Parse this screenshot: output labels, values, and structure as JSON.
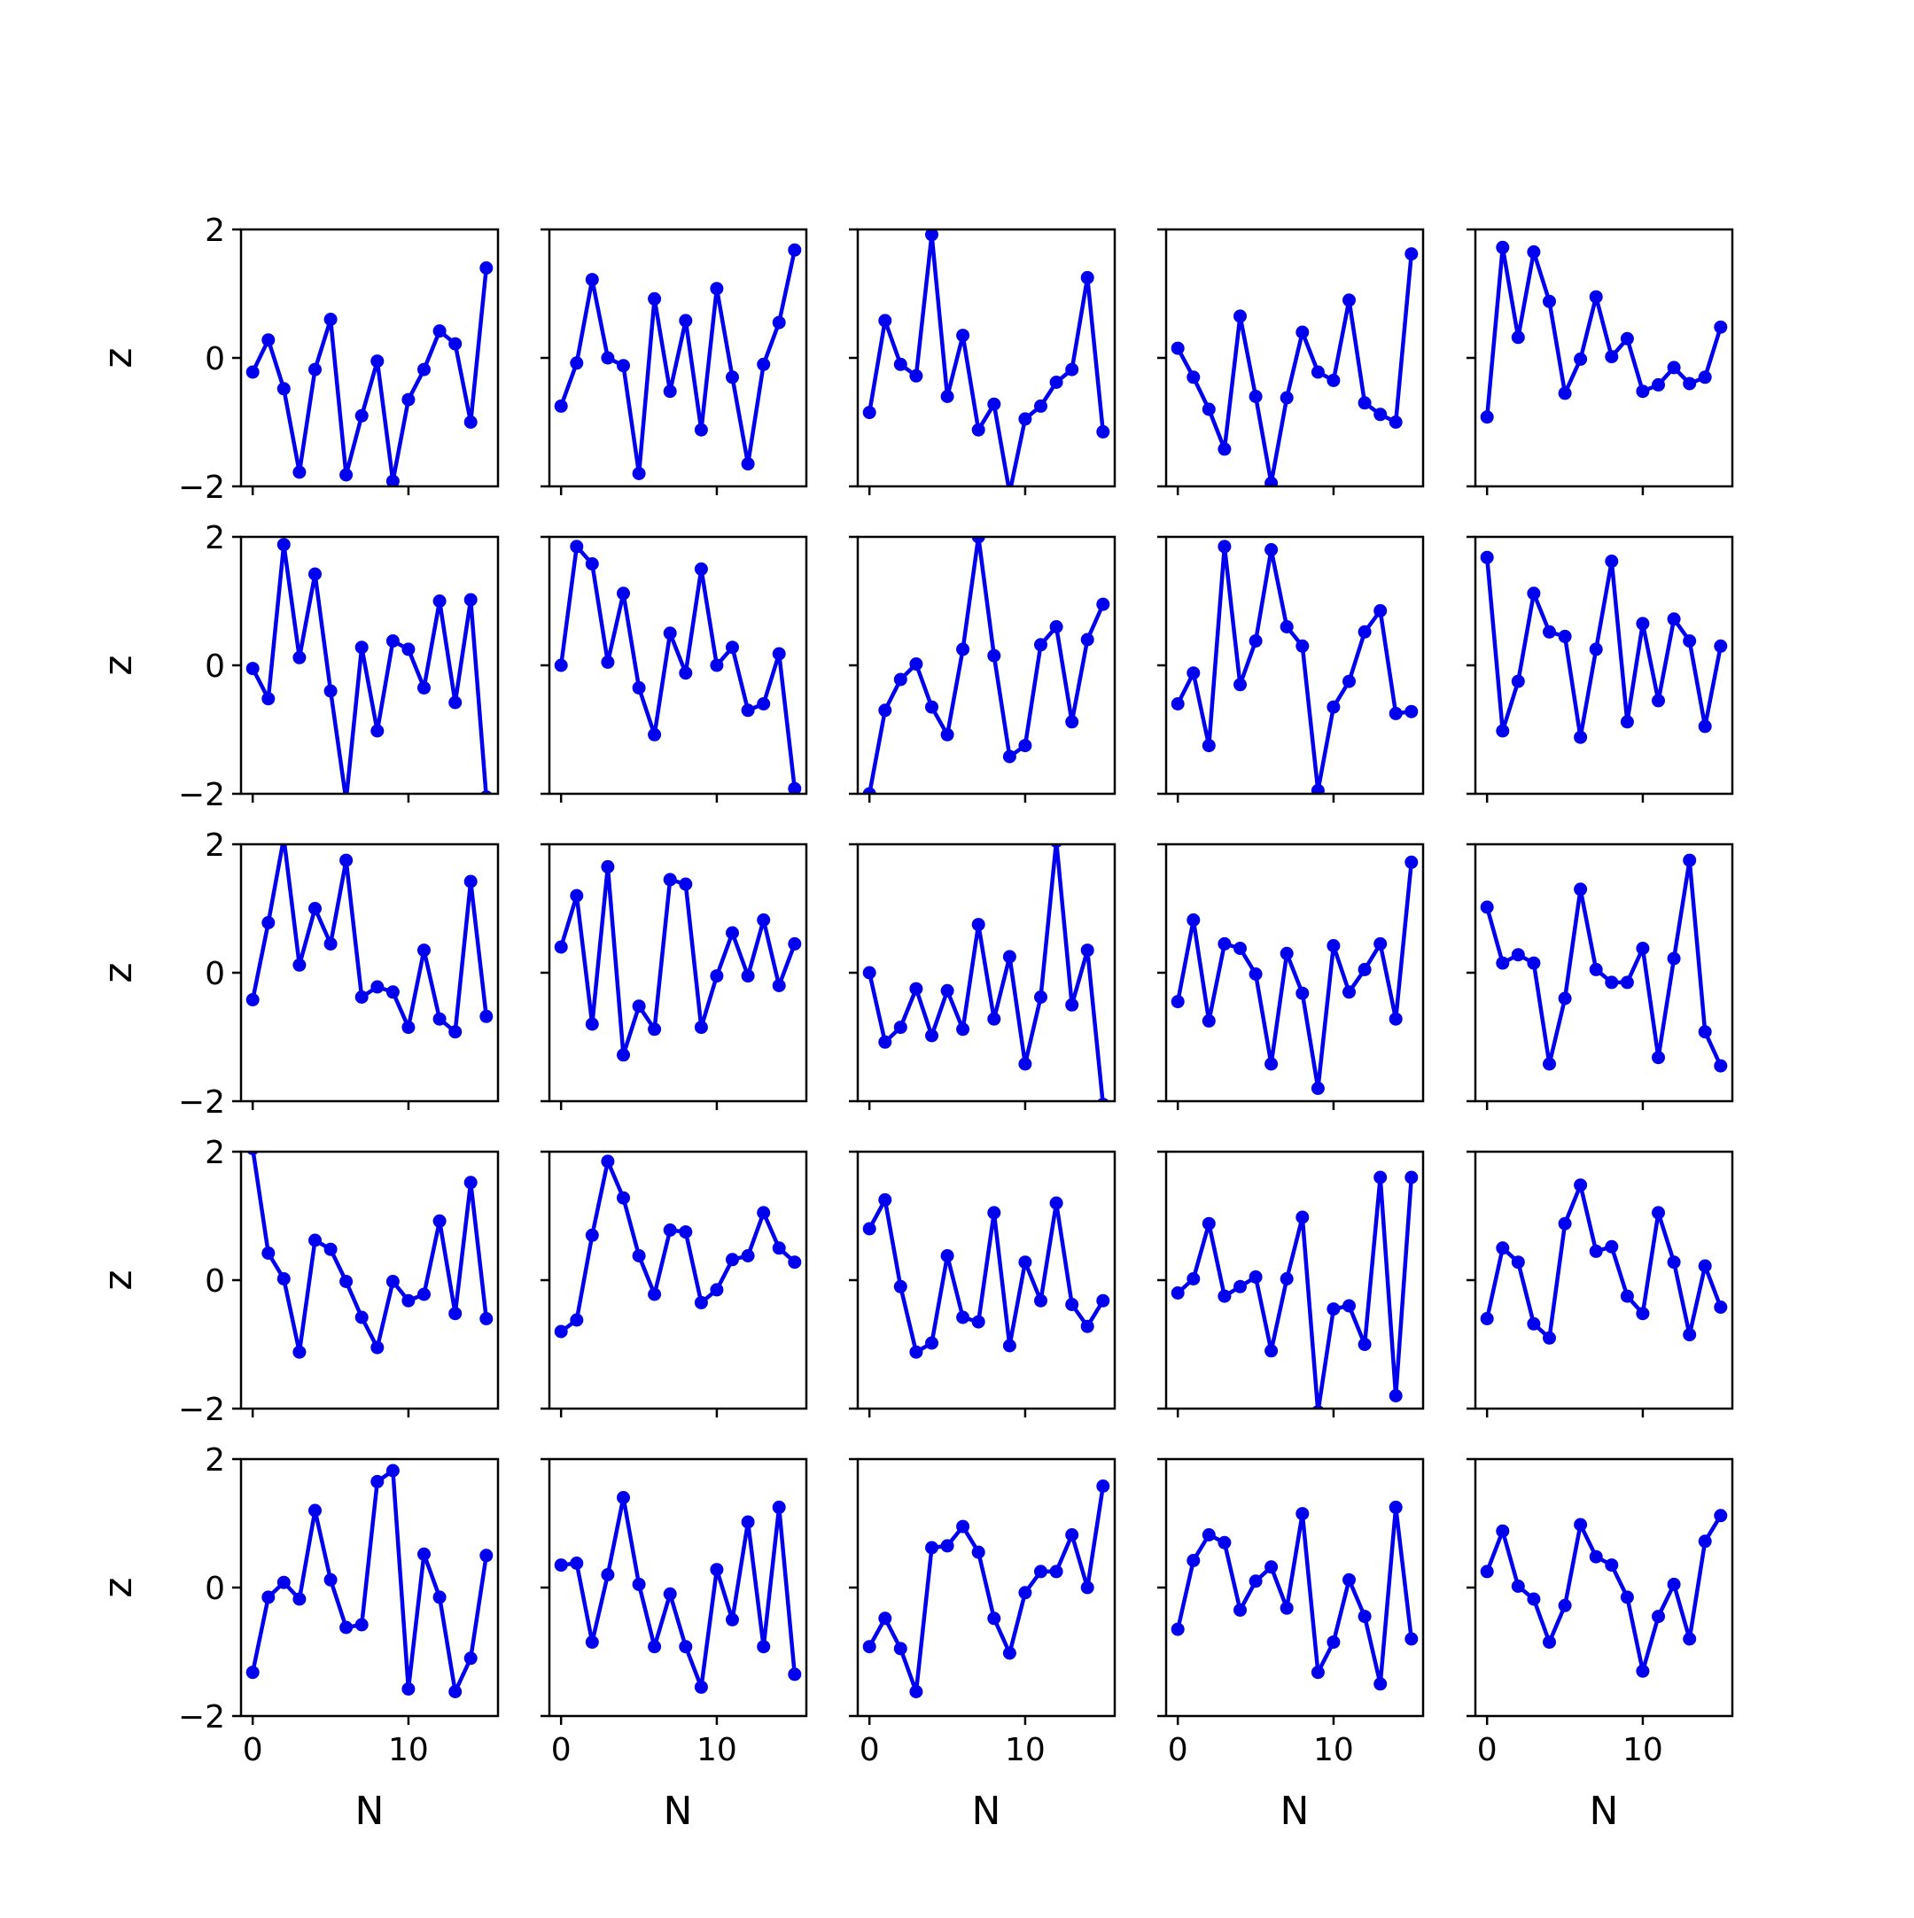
{
  "chart_data": {
    "type": "line",
    "layout": {
      "rows": 5,
      "cols": 5
    },
    "line_color": "#0000ee",
    "xlabel": "N",
    "ylabel": "z",
    "xlim": [
      -0.75,
      15.75
    ],
    "ylim": [
      -2,
      2
    ],
    "xticks": [
      0,
      10
    ],
    "yticks": [
      -2,
      0,
      2
    ],
    "x": [
      0,
      1,
      2,
      3,
      4,
      5,
      6,
      7,
      8,
      9,
      10,
      11,
      12,
      13,
      14,
      15
    ],
    "panels": [
      {
        "values": [
          -0.22,
          0.28,
          -0.48,
          -1.78,
          -0.18,
          0.6,
          -1.82,
          -0.9,
          -0.05,
          -1.92,
          -0.65,
          -0.18,
          0.42,
          0.22,
          -1.0,
          1.4
        ]
      },
      {
        "values": [
          -0.75,
          -0.08,
          1.22,
          0.0,
          -0.12,
          -1.8,
          0.92,
          -0.52,
          0.58,
          -1.12,
          1.08,
          -0.3,
          -1.65,
          -0.1,
          0.55,
          1.68
        ]
      },
      {
        "values": [
          -0.85,
          0.58,
          -0.1,
          -0.28,
          1.92,
          -0.6,
          0.35,
          -1.12,
          -0.72,
          -2.1,
          -0.95,
          -0.75,
          -0.38,
          -0.18,
          1.25,
          -1.15
        ]
      },
      {
        "values": [
          0.15,
          -0.3,
          -0.8,
          -1.42,
          0.65,
          -0.6,
          -1.95,
          -0.62,
          0.4,
          -0.22,
          -0.35,
          0.9,
          -0.7,
          -0.88,
          -1.0,
          1.62
        ]
      },
      {
        "values": [
          -0.92,
          1.72,
          0.32,
          1.65,
          0.88,
          -0.55,
          -0.02,
          0.95,
          0.02,
          0.3,
          -0.52,
          -0.42,
          -0.15,
          -0.4,
          -0.3,
          0.48
        ]
      },
      {
        "values": [
          -0.05,
          -0.52,
          1.88,
          0.12,
          1.42,
          -0.4,
          -2.1,
          0.28,
          -1.02,
          0.38,
          0.25,
          -0.35,
          1.0,
          -0.58,
          1.02,
          -2.05
        ]
      },
      {
        "values": [
          0.0,
          1.85,
          1.58,
          0.05,
          1.12,
          -0.35,
          -1.08,
          0.5,
          -0.12,
          1.5,
          0.0,
          0.28,
          -0.7,
          -0.6,
          0.18,
          -1.92
        ]
      },
      {
        "values": [
          -2.0,
          -0.7,
          -0.22,
          0.02,
          -0.65,
          -1.08,
          0.25,
          2.0,
          0.15,
          -1.42,
          -1.25,
          0.32,
          0.6,
          -0.88,
          0.4,
          0.95
        ]
      },
      {
        "values": [
          -0.6,
          -0.12,
          -1.25,
          1.85,
          -0.3,
          0.38,
          1.8,
          0.6,
          0.3,
          -1.95,
          -0.65,
          -0.25,
          0.52,
          0.85,
          -0.75,
          -0.72
        ]
      },
      {
        "values": [
          1.68,
          -1.02,
          -0.25,
          1.12,
          0.52,
          0.45,
          -1.12,
          0.25,
          1.62,
          -0.88,
          0.65,
          -0.55,
          0.72,
          0.38,
          -0.95,
          0.3
        ]
      },
      {
        "values": [
          -0.42,
          0.78,
          2.1,
          0.12,
          1.0,
          0.45,
          1.75,
          -0.38,
          -0.22,
          -0.3,
          -0.85,
          0.35,
          -0.72,
          -0.92,
          1.42,
          -0.68
        ]
      },
      {
        "values": [
          0.4,
          1.2,
          -0.8,
          1.65,
          -1.28,
          -0.52,
          -0.88,
          1.45,
          1.38,
          -0.85,
          -0.05,
          0.62,
          -0.05,
          0.82,
          -0.2,
          0.45
        ]
      },
      {
        "values": [
          0.0,
          -1.08,
          -0.85,
          -0.25,
          -0.98,
          -0.28,
          -0.88,
          0.75,
          -0.72,
          0.25,
          -1.42,
          -0.38,
          2.05,
          -0.5,
          0.35,
          -2.05
        ]
      },
      {
        "values": [
          -0.45,
          0.82,
          -0.75,
          0.45,
          0.38,
          -0.02,
          -1.42,
          0.3,
          -0.32,
          -1.8,
          0.42,
          -0.3,
          0.05,
          0.45,
          -0.72,
          1.72
        ]
      },
      {
        "values": [
          1.02,
          0.15,
          0.28,
          0.15,
          -1.42,
          -0.4,
          1.3,
          0.05,
          -0.15,
          -0.15,
          0.38,
          -1.32,
          0.22,
          1.75,
          -0.92,
          -1.45
        ]
      },
      {
        "values": [
          2.05,
          0.42,
          0.02,
          -1.12,
          0.62,
          0.48,
          -0.02,
          -0.58,
          -1.05,
          -0.02,
          -0.32,
          -0.22,
          0.92,
          -0.52,
          1.52,
          -0.6
        ]
      },
      {
        "values": [
          -0.8,
          -0.62,
          0.7,
          1.85,
          1.28,
          0.38,
          -0.22,
          0.78,
          0.75,
          -0.35,
          -0.15,
          0.32,
          0.38,
          1.05,
          0.5,
          0.28
        ]
      },
      {
        "values": [
          0.8,
          1.25,
          -0.1,
          -1.12,
          -0.98,
          0.38,
          -0.58,
          -0.65,
          1.05,
          -1.02,
          0.28,
          -0.32,
          1.2,
          -0.38,
          -0.72,
          -0.32
        ]
      },
      {
        "values": [
          -0.2,
          0.02,
          0.88,
          -0.25,
          -0.1,
          0.05,
          -1.1,
          0.02,
          0.98,
          -2.05,
          -0.45,
          -0.4,
          -1.0,
          1.6,
          -1.8,
          1.6
        ]
      },
      {
        "values": [
          -0.6,
          0.5,
          0.28,
          -0.68,
          -0.9,
          0.88,
          1.48,
          0.45,
          0.52,
          -0.25,
          -0.52,
          1.05,
          0.28,
          -0.85,
          0.22,
          -0.42
        ]
      },
      {
        "values": [
          -1.32,
          -0.15,
          0.08,
          -0.18,
          1.2,
          0.12,
          -0.62,
          -0.58,
          1.65,
          1.82,
          -1.58,
          0.52,
          -0.15,
          -1.62,
          -1.1,
          0.5
        ]
      },
      {
        "values": [
          0.35,
          0.38,
          -0.85,
          0.2,
          1.4,
          0.05,
          -0.92,
          -0.1,
          -0.92,
          -1.55,
          0.28,
          -0.5,
          1.02,
          -0.92,
          1.25,
          -1.35
        ]
      },
      {
        "values": [
          -0.92,
          -0.48,
          -0.95,
          -1.62,
          0.62,
          0.65,
          0.95,
          0.55,
          -0.48,
          -1.02,
          -0.08,
          0.25,
          0.25,
          0.82,
          0.0,
          1.58
        ]
      },
      {
        "values": [
          -0.65,
          0.42,
          0.82,
          0.7,
          -0.35,
          0.1,
          0.32,
          -0.32,
          1.15,
          -1.32,
          -0.85,
          0.12,
          -0.45,
          -1.5,
          1.25,
          -0.8
        ]
      },
      {
        "values": [
          0.25,
          0.88,
          0.02,
          -0.18,
          -0.85,
          -0.28,
          0.98,
          0.48,
          0.35,
          -0.15,
          -1.3,
          -0.45,
          0.05,
          -0.8,
          0.72,
          1.12
        ]
      }
    ]
  }
}
